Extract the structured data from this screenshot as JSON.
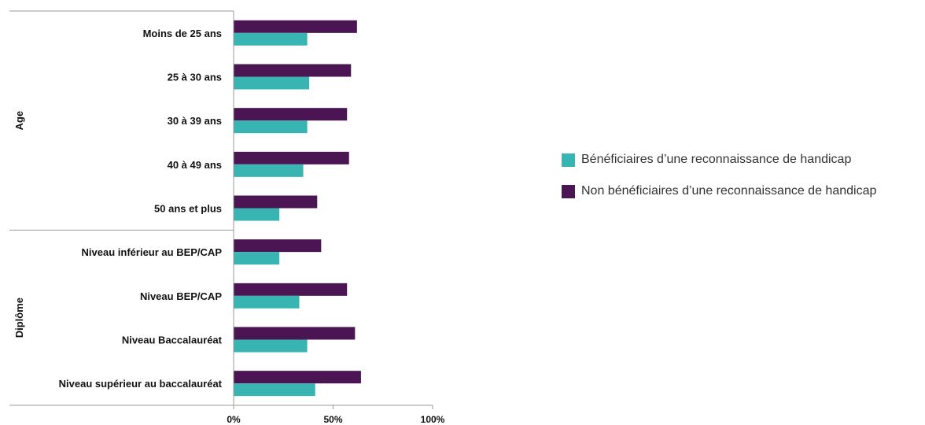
{
  "chart_data": {
    "type": "bar",
    "orientation": "horizontal",
    "title": "",
    "xlabel": "",
    "ylabel": "",
    "xlim": [
      0,
      1
    ],
    "x_ticks": [
      "0%",
      "50%",
      "100%"
    ],
    "groups": [
      {
        "name": "Age",
        "categories": [
          "Moins de 25 ans",
          "25 à 30 ans",
          "30 à 39 ans",
          "40 à 49 ans",
          "50 ans et plus"
        ]
      },
      {
        "name": "Diplôme",
        "categories": [
          "Niveau inférieur au BEP/CAP",
          "Niveau BEP/CAP",
          "Niveau Baccalauréat",
          "Niveau supérieur au baccalauréat"
        ]
      }
    ],
    "categories": [
      "Moins de 25 ans",
      "25 à 30 ans",
      "30 à 39 ans",
      "40 à 49 ans",
      "50 ans et plus",
      "Niveau inférieur au BEP/CAP",
      "Niveau BEP/CAP",
      "Niveau Baccalauréat",
      "Niveau supérieur au baccalauréat"
    ],
    "series": [
      {
        "name": "Non bénéficiaires d’une reconnaissance de handicap",
        "color": "#4b1554",
        "values": [
          0.62,
          0.59,
          0.57,
          0.58,
          0.42,
          0.44,
          0.57,
          0.61,
          0.64
        ]
      },
      {
        "name": "Bénéficiaires d’une reconnaissance de handicap",
        "color": "#38b5b3",
        "values": [
          0.37,
          0.38,
          0.37,
          0.35,
          0.23,
          0.23,
          0.33,
          0.37,
          0.41
        ]
      }
    ],
    "grid": false,
    "legend_position": "right"
  },
  "legend": [
    {
      "label": "Bénéficiaires d’une reconnaissance de handicap",
      "color": "#38b5b3"
    },
    {
      "label": "Non bénéficiaires d’une reconnaissance de handicap",
      "color": "#4b1554"
    }
  ]
}
